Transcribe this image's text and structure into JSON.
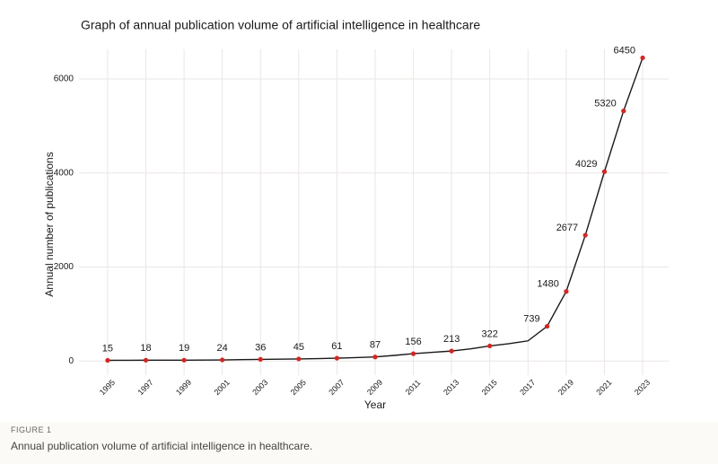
{
  "chart_data": {
    "type": "line",
    "title": "Graph of annual publication volume of artificial intelligence in healthcare",
    "xlabel": "Year",
    "ylabel": "Annual number of publications",
    "series": [
      {
        "color": "#1a1a1a",
        "x": [
          1995,
          1996,
          1997,
          1998,
          1999,
          2000,
          2001,
          2002,
          2003,
          2004,
          2005,
          2006,
          2007,
          2008,
          2009,
          2010,
          2011,
          2012,
          2013,
          2014,
          2015,
          2016,
          2017,
          2018,
          2019,
          2020,
          2021,
          2022,
          2023
        ],
        "values": [
          15,
          16,
          18,
          18,
          19,
          21,
          24,
          30,
          36,
          40,
          45,
          52,
          61,
          74,
          87,
          120,
          156,
          185,
          213,
          260,
          322,
          370,
          430,
          739,
          1480,
          2677,
          4029,
          5320,
          6450
        ]
      },
      {
        "color": "#e0201b",
        "x": [
          1995,
          1997,
          1999,
          2001,
          2003,
          2005,
          2007,
          2009,
          2011,
          2013,
          2015,
          2018,
          2019,
          2020,
          2021,
          2022,
          2023
        ],
        "values": [
          15,
          18,
          19,
          24,
          36,
          45,
          61,
          87,
          156,
          213,
          322,
          739,
          1480,
          2677,
          4029,
          5320,
          6450
        ]
      }
    ],
    "xlim": [
      1993.5,
      2024.36
    ],
    "xticks": [
      1995,
      1997,
      1999,
      2001,
      2003,
      2005,
      2007,
      2009,
      2011,
      2013,
      2015,
      2017,
      2019,
      2021,
      2023
    ],
    "ylim": [
      -300,
      6630
    ],
    "yticks": [
      0,
      2000,
      4000,
      6000
    ],
    "grid": true
  },
  "caption": {
    "label": "FIGURE 1",
    "text": "Annual publication volume of artificial intelligence in healthcare."
  }
}
